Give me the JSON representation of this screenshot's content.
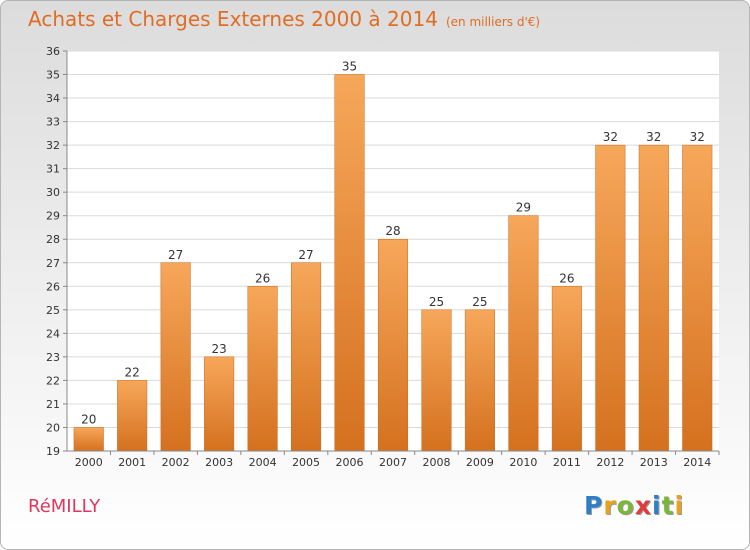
{
  "header": {
    "title": "Achats et Charges Externes 2000 à 2014",
    "unit": "(en milliers d'€)"
  },
  "footer": {
    "commune": "RéMILLY",
    "logo_letters": [
      {
        "char": "P",
        "color": "#2f7fc8"
      },
      {
        "char": "r",
        "color": "#e8a21e"
      },
      {
        "char": "o",
        "color": "#7bb63a"
      },
      {
        "char": "x",
        "color": "#e03c3c"
      },
      {
        "char": "i",
        "color": "#2f7fc8"
      },
      {
        "char": "t",
        "color": "#7bb63a"
      },
      {
        "char": "i",
        "color": "#e8a21e"
      }
    ]
  },
  "colors": {
    "bar_light": "#f7a75a",
    "bar_dark": "#d4711f",
    "title": "#e06d24",
    "commune": "#e0365e",
    "grid": "#d9d9d9",
    "axis_text": "#333333",
    "label_text": "#333333"
  },
  "chart_data": {
    "type": "bar",
    "title": "Achats et Charges Externes 2000 à 2014",
    "subtitle": "(en milliers d'€)",
    "categories": [
      "2000",
      "2001",
      "2002",
      "2003",
      "2004",
      "2005",
      "2006",
      "2007",
      "2008",
      "2009",
      "2010",
      "2011",
      "2012",
      "2013",
      "2014"
    ],
    "values": [
      20,
      22,
      27,
      23,
      26,
      27,
      35,
      28,
      25,
      25,
      29,
      26,
      32,
      32,
      32
    ],
    "ylim": [
      19,
      36
    ],
    "yticks": [
      19,
      20,
      21,
      22,
      23,
      24,
      25,
      26,
      27,
      28,
      29,
      30,
      31,
      32,
      33,
      34,
      35,
      36
    ],
    "grid": true,
    "legend": "none"
  }
}
